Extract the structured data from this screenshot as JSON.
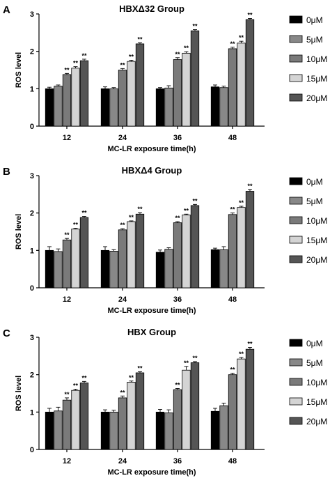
{
  "panels": [
    {
      "letter": "A",
      "chart_data": {
        "type": "bar",
        "title": "HBXΔ32 Group",
        "xlabel": "MC-LR exposure time(h)",
        "ylabel": "ROS level",
        "ylim": [
          0,
          3
        ],
        "yticks": [
          "0",
          "1",
          "2",
          "3"
        ],
        "categories": [
          "12",
          "24",
          "36",
          "48"
        ],
        "grid": false,
        "legend_position": "right",
        "series": [
          {
            "name": "0μM",
            "color": "#000000",
            "values": [
              1.0,
              1.0,
              1.0,
              1.05
            ],
            "errors": [
              0.04,
              0.05,
              0.03,
              0.05
            ],
            "labels": [
              "",
              "",
              "",
              ""
            ]
          },
          {
            "name": "5μM",
            "color": "#888888",
            "values": [
              1.07,
              1.0,
              1.02,
              1.03
            ],
            "errors": [
              0.03,
              0.03,
              0.06,
              0.04
            ],
            "labels": [
              "",
              "",
              "",
              ""
            ]
          },
          {
            "name": "10μM",
            "color": "#7a7a7a",
            "values": [
              1.38,
              1.5,
              1.78,
              2.07
            ],
            "errors": [
              0.03,
              0.04,
              0.05,
              0.04
            ],
            "labels": [
              "**",
              "**",
              "**",
              "**"
            ]
          },
          {
            "name": "15μM",
            "color": "#d4d4d4",
            "values": [
              1.55,
              1.73,
              1.95,
              2.22
            ],
            "errors": [
              0.04,
              0.03,
              0.04,
              0.05
            ],
            "labels": [
              "**",
              "**",
              "**",
              "**"
            ]
          },
          {
            "name": "20μM",
            "color": "#555555",
            "values": [
              1.75,
              2.2,
              2.55,
              2.85
            ],
            "errors": [
              0.04,
              0.03,
              0.03,
              0.03
            ],
            "labels": [
              "**",
              "**",
              "**",
              "**"
            ]
          }
        ]
      }
    },
    {
      "letter": "B",
      "chart_data": {
        "type": "bar",
        "title": "HBXΔ4 Group",
        "xlabel": "MC-LR exposure time(h)",
        "ylabel": "ROS level",
        "ylim": [
          0,
          3
        ],
        "yticks": [
          "0",
          "1",
          "2",
          "3"
        ],
        "categories": [
          "12",
          "24",
          "36",
          "48"
        ],
        "grid": false,
        "legend_position": "right",
        "series": [
          {
            "name": "0μM",
            "color": "#000000",
            "values": [
              1.0,
              1.0,
              0.95,
              1.02
            ],
            "errors": [
              0.1,
              0.1,
              0.06,
              0.04
            ],
            "labels": [
              "",
              "",
              "",
              ""
            ]
          },
          {
            "name": "5μM",
            "color": "#888888",
            "values": [
              0.97,
              0.98,
              1.03,
              1.02
            ],
            "errors": [
              0.07,
              0.04,
              0.04,
              0.08
            ],
            "labels": [
              "",
              "",
              "",
              ""
            ]
          },
          {
            "name": "10μM",
            "color": "#7a7a7a",
            "values": [
              1.28,
              1.55,
              1.74,
              1.96
            ],
            "errors": [
              0.04,
              0.03,
              0.03,
              0.04
            ],
            "labels": [
              "**",
              "**",
              "**",
              "**"
            ]
          },
          {
            "name": "15μM",
            "color": "#d4d4d4",
            "values": [
              1.57,
              1.77,
              1.95,
              2.15
            ],
            "errors": [
              0.02,
              0.02,
              0.02,
              0.03
            ],
            "labels": [
              "**",
              "**",
              "**",
              "**"
            ]
          },
          {
            "name": "20μM",
            "color": "#555555",
            "values": [
              1.88,
              1.97,
              2.2,
              2.58
            ],
            "errors": [
              0.03,
              0.04,
              0.03,
              0.05
            ],
            "labels": [
              "**",
              "**",
              "**",
              "**"
            ]
          }
        ]
      }
    },
    {
      "letter": "C",
      "chart_data": {
        "type": "bar",
        "title": "HBX Group",
        "xlabel": "MC-LR exposure time(h)",
        "ylabel": "ROS level",
        "ylim": [
          0,
          3
        ],
        "yticks": [
          "0",
          "1",
          "2",
          "3"
        ],
        "categories": [
          "12",
          "24",
          "36",
          "48"
        ],
        "grid": false,
        "legend_position": "right",
        "series": [
          {
            "name": "0μM",
            "color": "#000000",
            "values": [
              1.0,
              1.0,
              1.0,
              1.02
            ],
            "errors": [
              0.1,
              0.06,
              0.07,
              0.08
            ],
            "labels": [
              "",
              "",
              "",
              ""
            ]
          },
          {
            "name": "5μM",
            "color": "#888888",
            "values": [
              1.03,
              1.0,
              0.98,
              1.17
            ],
            "errors": [
              0.1,
              0.05,
              0.08,
              0.07
            ],
            "labels": [
              "",
              "",
              "",
              ""
            ]
          },
          {
            "name": "10μM",
            "color": "#7a7a7a",
            "values": [
              1.32,
              1.38,
              1.6,
              2.0
            ],
            "errors": [
              0.06,
              0.05,
              0.03,
              0.04
            ],
            "labels": [
              "**",
              "**",
              "**",
              "**"
            ]
          },
          {
            "name": "15μM",
            "color": "#d4d4d4",
            "values": [
              1.58,
              1.8,
              2.12,
              2.42
            ],
            "errors": [
              0.03,
              0.03,
              0.1,
              0.04
            ],
            "labels": [
              "**",
              "**",
              "**",
              "**"
            ]
          },
          {
            "name": "20μM",
            "color": "#555555",
            "values": [
              1.78,
              2.05,
              2.32,
              2.68
            ],
            "errors": [
              0.04,
              0.03,
              0.03,
              0.05
            ],
            "labels": [
              "**",
              "**",
              "**",
              "**"
            ]
          }
        ]
      }
    }
  ]
}
